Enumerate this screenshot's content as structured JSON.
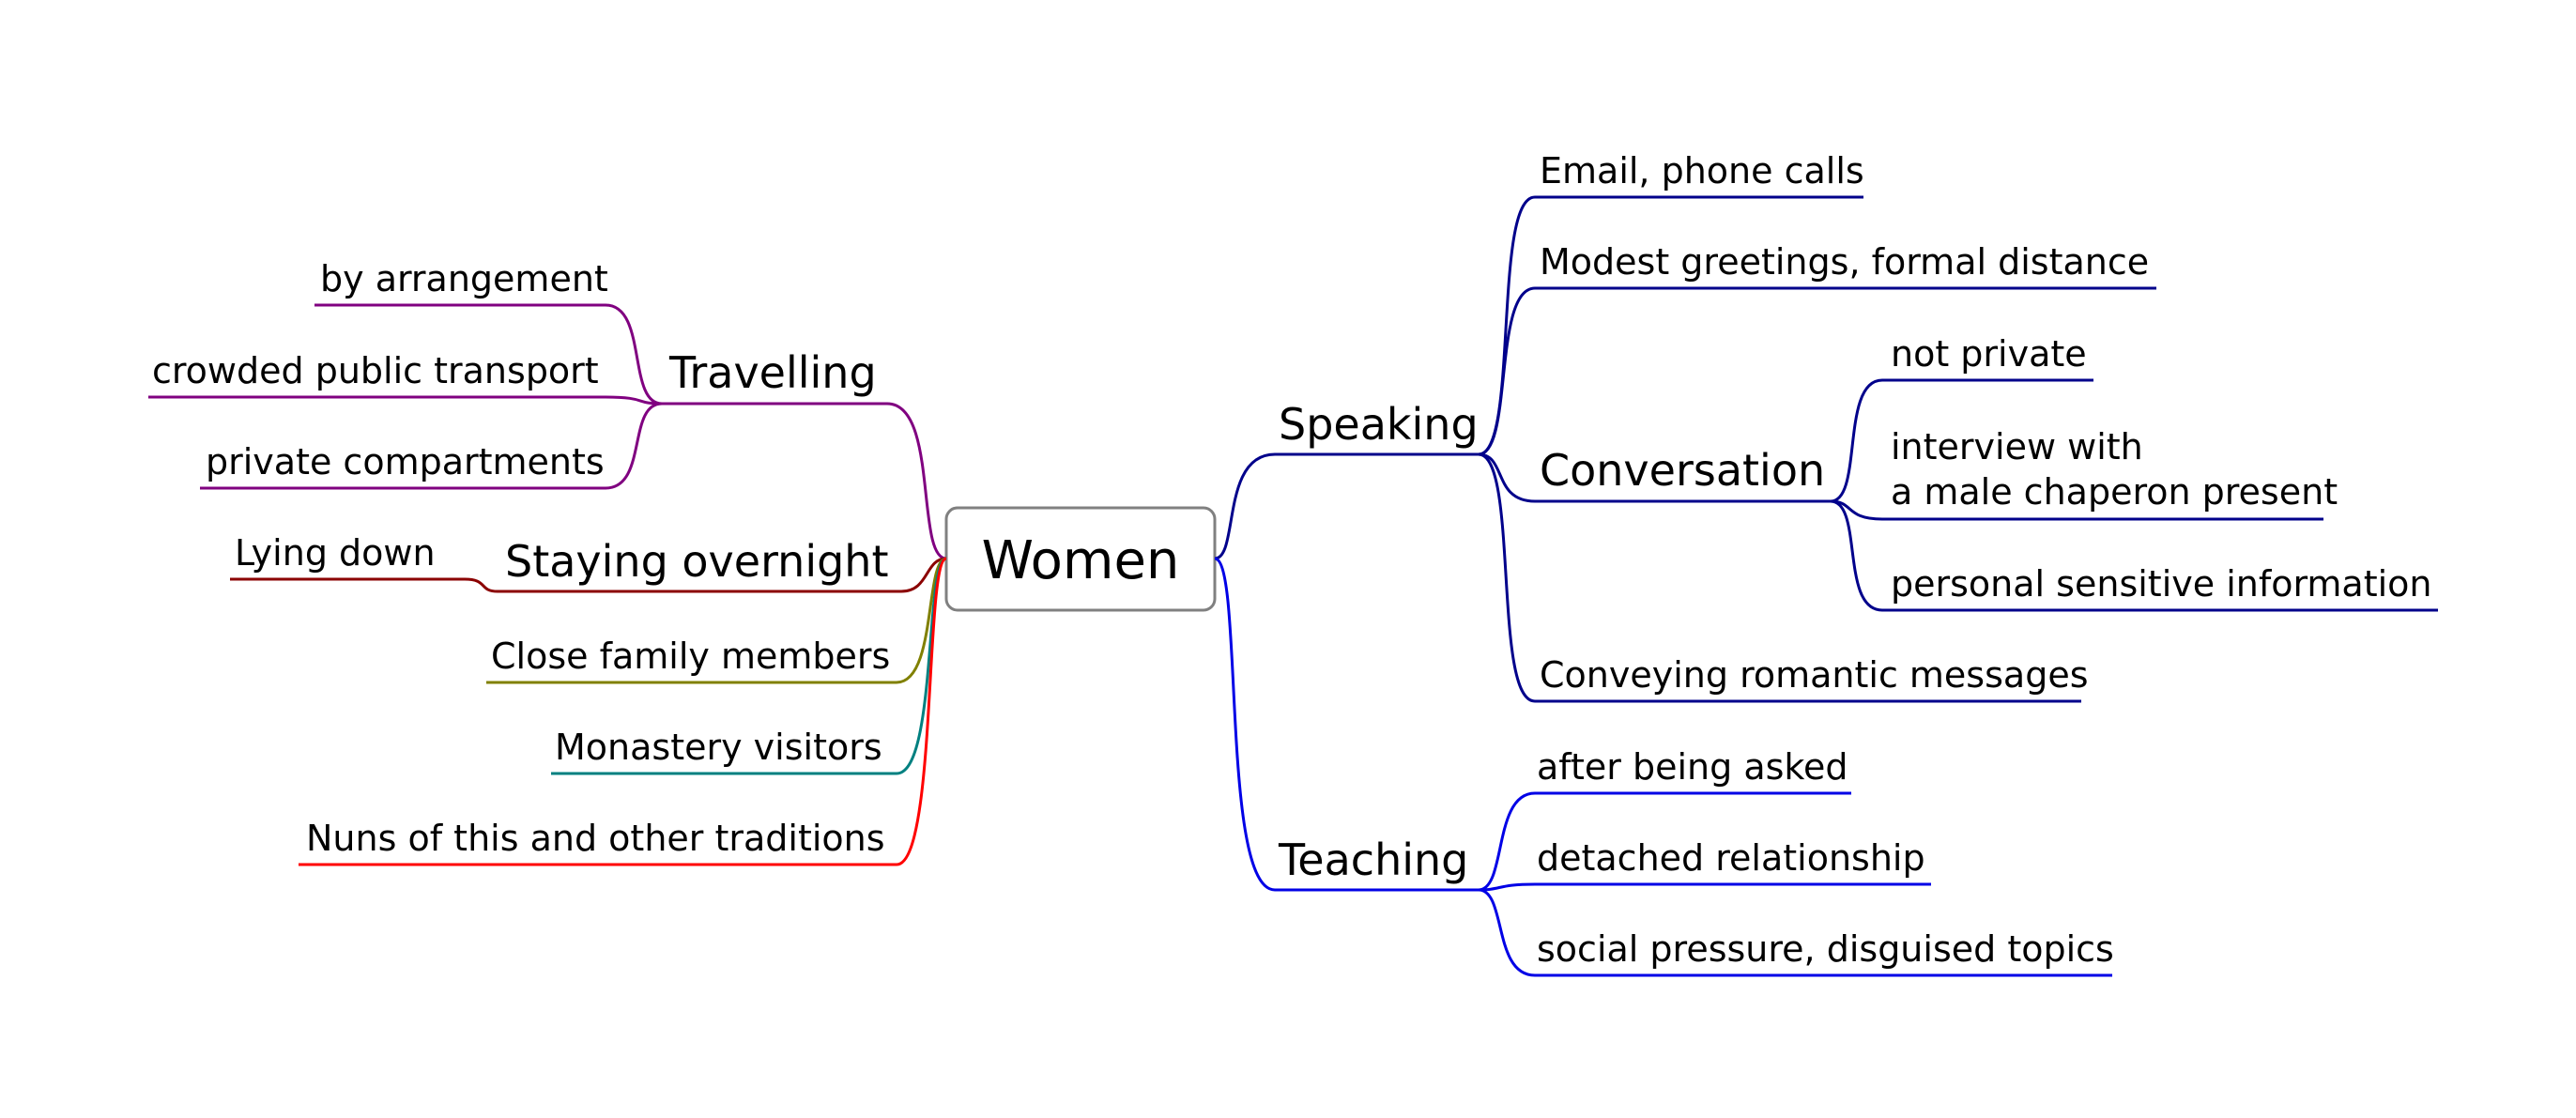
{
  "root": {
    "label": "Women"
  },
  "colors": {
    "speaking": "#00008b",
    "teaching": "#0000e6",
    "travelling": "#800080",
    "staying": "#8b0000",
    "family": "#808000",
    "monastery": "#008080",
    "nuns": "#ff0000",
    "root_border": "#808080"
  },
  "right": {
    "speaking": {
      "label": "Speaking",
      "children": {
        "email": "Email, phone calls",
        "greetings": "Modest greetings, formal distance",
        "conversation": {
          "label": "Conversation",
          "children": {
            "not_private": "not private",
            "interview_line1": "interview with",
            "interview_line2": "a male chaperon present",
            "personal": "personal sensitive information"
          }
        },
        "romantic": "Conveying romantic messages"
      }
    },
    "teaching": {
      "label": "Teaching",
      "children": {
        "asked": "after being asked",
        "detached": "detached relationship",
        "social": "social pressure, disguised topics"
      }
    }
  },
  "left": {
    "travelling": {
      "label": "Travelling",
      "children": {
        "arrangement": "by arrangement",
        "crowded": "crowded public transport",
        "compartments": "private compartments"
      }
    },
    "staying": {
      "label": "Staying overnight",
      "children": {
        "lying": "Lying down"
      }
    },
    "family": {
      "label": "Close family members"
    },
    "monastery": {
      "label": "Monastery visitors"
    },
    "nuns": {
      "label": "Nuns of this and other traditions"
    }
  }
}
